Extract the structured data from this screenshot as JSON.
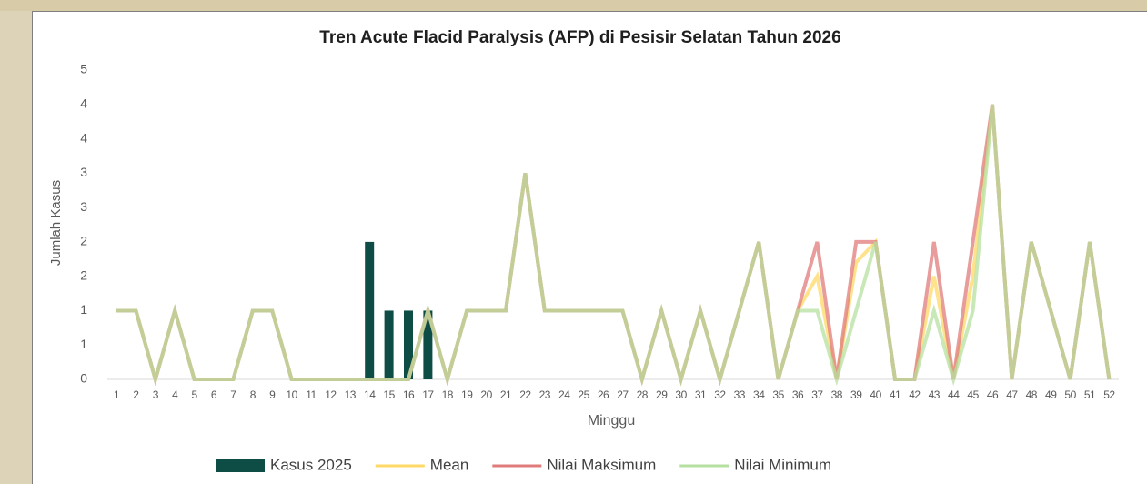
{
  "chart_data": {
    "type": "bar-line",
    "title": "Tren Acute Flacid Paralysis (AFP) di Pesisir Selatan Tahun 2026",
    "x_label": "Minggu",
    "y_label": "Jumlah Kasus",
    "categories": [
      "1",
      "2",
      "3",
      "4",
      "5",
      "6",
      "7",
      "8",
      "9",
      "10",
      "11",
      "12",
      "13",
      "14",
      "15",
      "16",
      "17",
      "18",
      "19",
      "20",
      "21",
      "22",
      "23",
      "24",
      "25",
      "26",
      "27",
      "28",
      "29",
      "30",
      "31",
      "32",
      "33",
      "34",
      "35",
      "36",
      "37",
      "38",
      "39",
      "40",
      "41",
      "42",
      "43",
      "44",
      "45",
      "46",
      "47",
      "48",
      "49",
      "50",
      "51",
      "52"
    ],
    "series": [
      {
        "name": "Kasus 2025",
        "kind": "bar",
        "color": "#0e4d46",
        "values": [
          null,
          null,
          null,
          null,
          null,
          null,
          null,
          null,
          null,
          null,
          null,
          null,
          null,
          2,
          1,
          1,
          1,
          null,
          null,
          null,
          null,
          null,
          null,
          null,
          null,
          null,
          null,
          null,
          null,
          null,
          null,
          null,
          null,
          null,
          null,
          null,
          null,
          null,
          null,
          null,
          null,
          null,
          null,
          null,
          null,
          null,
          null,
          null,
          null,
          null,
          null,
          null
        ]
      },
      {
        "name": "Mean",
        "kind": "line",
        "color": "#ffd966",
        "values": [
          1,
          1,
          0,
          1,
          0,
          0,
          0,
          1,
          1,
          0,
          0,
          0,
          0,
          0,
          0,
          0,
          1,
          0,
          1,
          1,
          1,
          3,
          1,
          1,
          1,
          1,
          1,
          0,
          1,
          0,
          1,
          0,
          1,
          2,
          0,
          1,
          1.5,
          0,
          1.7,
          2,
          0,
          0,
          1.5,
          0,
          1.5,
          4,
          0,
          2,
          1,
          0,
          2,
          0
        ]
      },
      {
        "name": "Nilai Maksimum",
        "kind": "line",
        "color": "#e07b7b",
        "values": [
          1,
          1,
          0,
          1,
          0,
          0,
          0,
          1,
          1,
          0,
          0,
          0,
          0,
          0,
          0,
          0,
          1,
          0,
          1,
          1,
          1,
          3,
          1,
          1,
          1,
          1,
          1,
          0,
          1,
          0,
          1,
          0,
          1,
          2,
          0,
          1,
          2,
          0,
          2,
          2,
          0,
          0,
          2,
          0,
          2,
          4,
          0,
          2,
          1,
          0,
          2,
          0
        ]
      },
      {
        "name": "Nilai Minimum",
        "kind": "line",
        "color": "#b5e0a0",
        "values": [
          1,
          1,
          0,
          1,
          0,
          0,
          0,
          1,
          1,
          0,
          0,
          0,
          0,
          0,
          0,
          0,
          1,
          0,
          1,
          1,
          1,
          3,
          1,
          1,
          1,
          1,
          1,
          0,
          1,
          0,
          1,
          0,
          1,
          2,
          0,
          1,
          1,
          0,
          1,
          2,
          0,
          0,
          1,
          0,
          1,
          4,
          0,
          2,
          1,
          0,
          2,
          0
        ]
      }
    ],
    "ylim": [
      0,
      4.5
    ],
    "yticks": [
      0,
      {
        "value": 0.5,
        "label": "1"
      },
      1,
      {
        "value": 1.5,
        "label": "2"
      },
      2,
      {
        "value": 2.5,
        "label": "3"
      },
      3,
      {
        "value": 3.5,
        "label": "4"
      },
      4,
      {
        "value": 4.5,
        "label": "5"
      }
    ],
    "grid": false,
    "legend": "bottom"
  }
}
